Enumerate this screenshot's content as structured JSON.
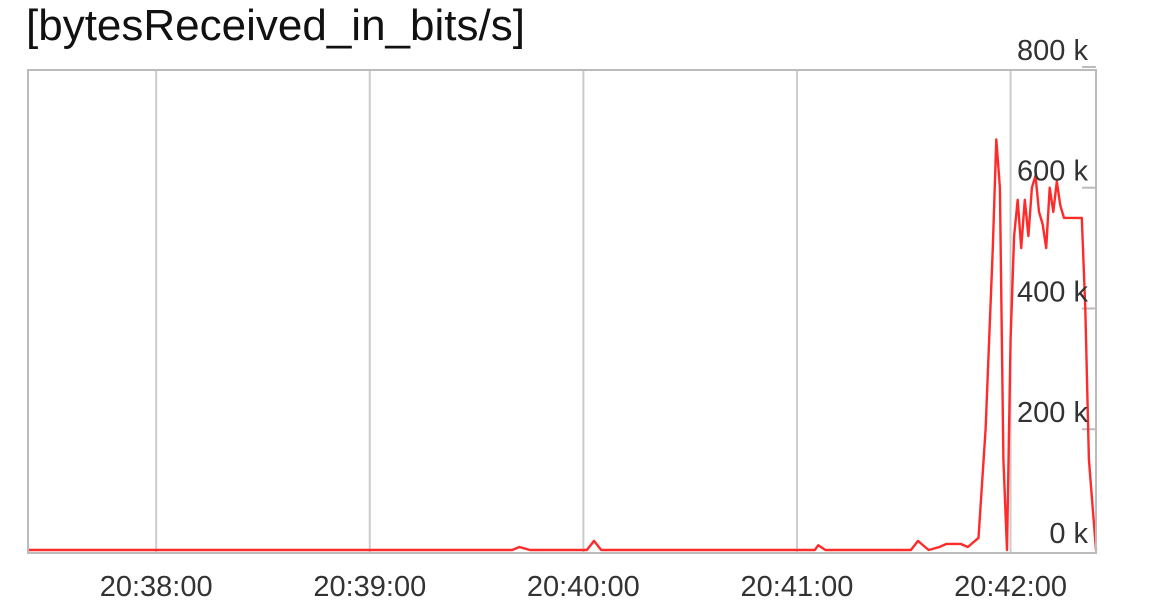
{
  "chart_data": {
    "type": "line",
    "title": "[bytesReceived_in_bits/s]",
    "xlabel": "",
    "ylabel": "",
    "x_tick_labels": [
      "20:38:00",
      "20:39:00",
      "20:40:00",
      "20:41:00",
      "20:42:00"
    ],
    "y_tick_labels": [
      "800 k",
      "600 k",
      "400 k",
      "200 k",
      "0 k"
    ],
    "y_tick_values": [
      800000,
      600000,
      400000,
      200000,
      0
    ],
    "xlim": [
      "20:37:24",
      "20:42:24"
    ],
    "ylim": [
      -5000,
      795000
    ],
    "grid": true,
    "legend": "none",
    "colors": {
      "line": "#ff2a2a",
      "grid": "#cccccc",
      "frame": "#bbbbbb",
      "text": "#333333"
    },
    "series": [
      {
        "x": [
          "20:37:24",
          "20:39:40",
          "20:39:42",
          "20:39:45",
          "20:40:01",
          "20:40:03",
          "20:40:05",
          "20:41:05",
          "20:41:06",
          "20:41:08",
          "20:41:32",
          "20:41:34",
          "20:41:36",
          "20:41:37",
          "20:41:40",
          "20:41:42",
          "20:41:46",
          "20:41:48",
          "20:41:51",
          "20:41:53",
          "20:41:55",
          "20:41:56",
          "20:41:57",
          "20:41:58",
          "20:41:59",
          "20:42:00",
          "20:42:01",
          "20:42:02",
          "20:42:03",
          "20:42:04",
          "20:42:05",
          "20:42:06",
          "20:42:07",
          "20:42:08",
          "20:42:09",
          "20:42:10",
          "20:42:11",
          "20:42:12",
          "20:42:13",
          "20:42:14",
          "20:42:15",
          "20:42:16",
          "20:42:17",
          "20:42:18",
          "20:42:20",
          "20:42:21",
          "20:42:22",
          "20:42:24"
        ],
        "values": [
          0,
          0,
          5000,
          0,
          0,
          15000,
          0,
          0,
          8000,
          0,
          0,
          15000,
          5000,
          0,
          5000,
          10000,
          10000,
          5000,
          20000,
          200000,
          500000,
          680000,
          600000,
          150000,
          0,
          350000,
          520000,
          580000,
          500000,
          580000,
          520000,
          600000,
          620000,
          560000,
          540000,
          500000,
          600000,
          560000,
          610000,
          570000,
          550000,
          550000,
          550000,
          550000,
          550000,
          400000,
          150000,
          0
        ]
      }
    ]
  }
}
